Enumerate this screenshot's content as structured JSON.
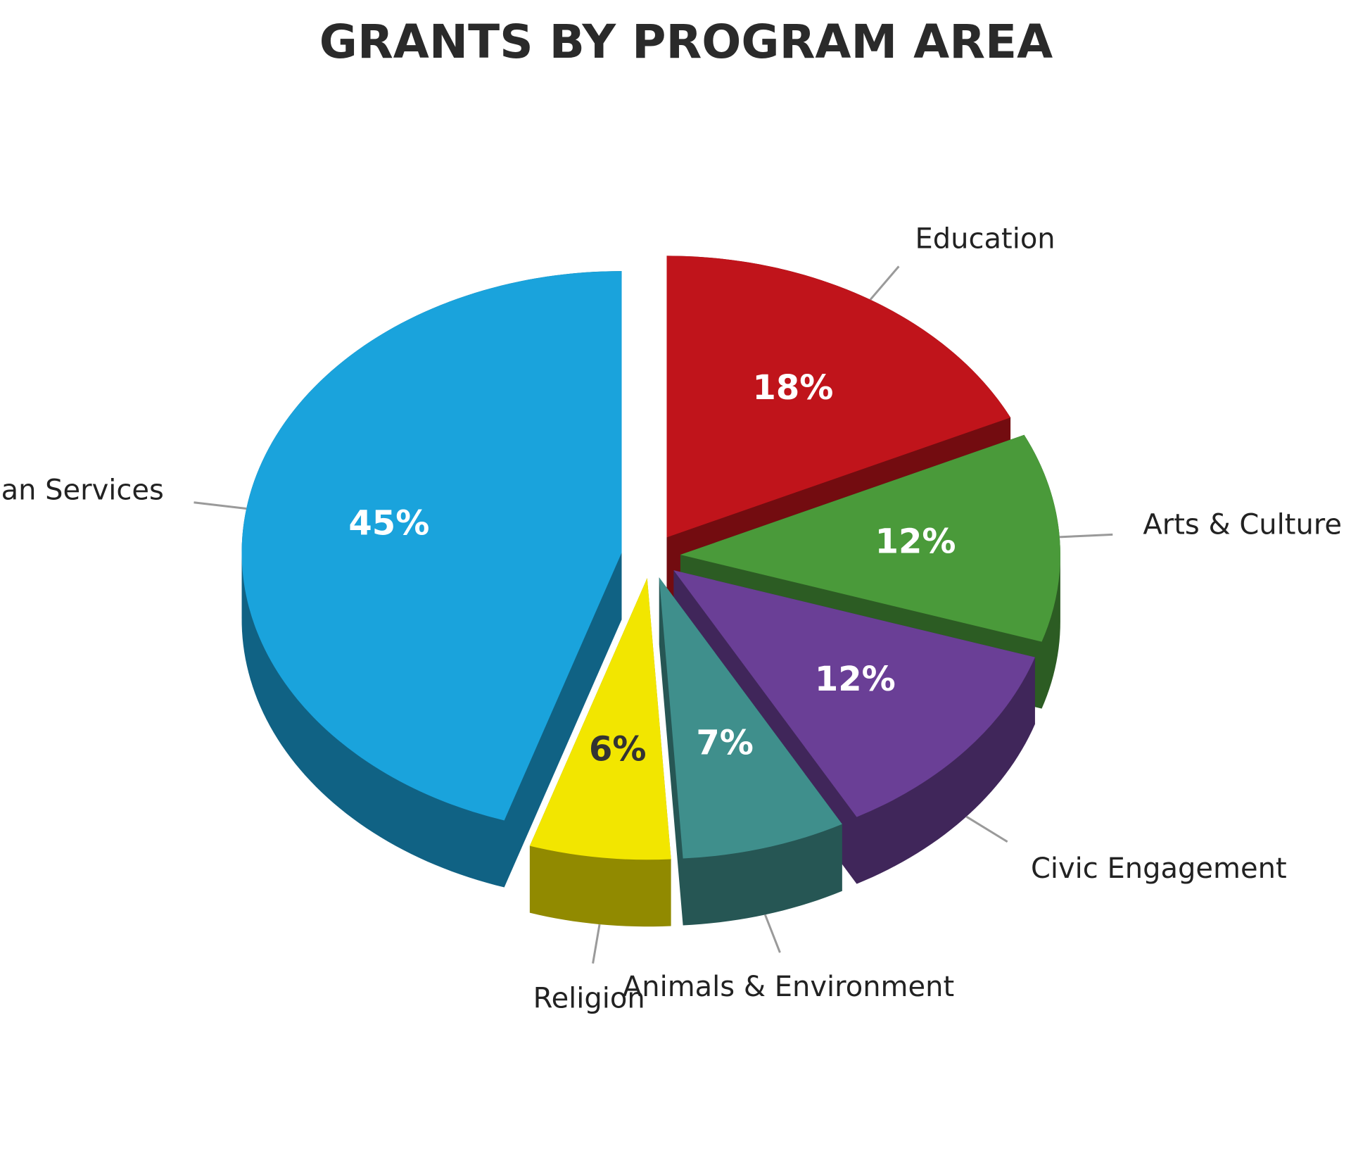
{
  "chart_data": {
    "type": "pie",
    "title": "GRANTS BY PROGRAM AREA",
    "categories": [
      "Education",
      "Arts & Culture",
      "Civic Engagement",
      "Animals & Environment",
      "Religion",
      "Human Services"
    ],
    "values": [
      18,
      12,
      12,
      7,
      6,
      45
    ],
    "value_labels": [
      "18%",
      "12%",
      "12%",
      "7%",
      "6%",
      "45%"
    ],
    "colors": [
      "#c0141b",
      "#4a9a3a",
      "#6a3f96",
      "#3f8f8c",
      "#f2e600",
      "#1aa3dc"
    ]
  }
}
